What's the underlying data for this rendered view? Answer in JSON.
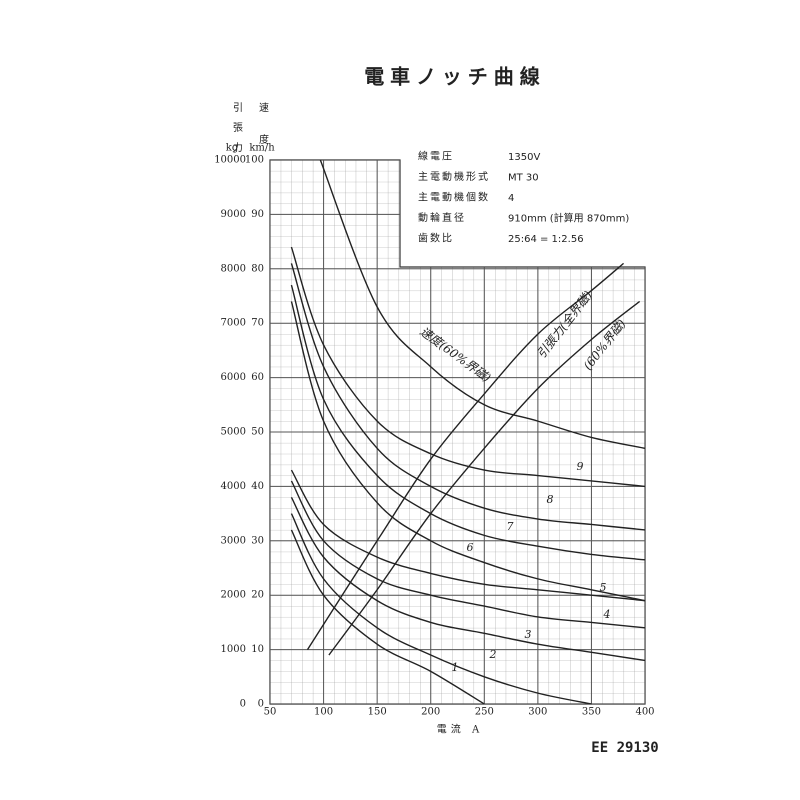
{
  "chart_data": {
    "type": "line",
    "title": "電車ノッチ曲線",
    "specs": [
      {
        "label": "線電圧",
        "value": "1350V"
      },
      {
        "label": "主電動機形式",
        "value": "MT 30"
      },
      {
        "label": "主電動機個数",
        "value": "4"
      },
      {
        "label": "動輪直径",
        "value": "910mm (計算用 870mm)"
      },
      {
        "label": "歯数比",
        "value": "25:64 = 1:2.56"
      }
    ],
    "y_label": "引張力",
    "y2_label": "速度",
    "y_unit": "kg",
    "y2_unit": "km/h",
    "x_label": "電流 A",
    "footer": "EE 29130",
    "xlim": [
      50,
      400
    ],
    "xticks": [
      50,
      100,
      150,
      200,
      250,
      300,
      350,
      400
    ],
    "ylim": [
      0,
      10000
    ],
    "yticks": [
      0,
      1000,
      2000,
      3000,
      4000,
      5000,
      6000,
      7000,
      8000,
      9000,
      10000
    ],
    "y2lim": [
      0,
      100
    ],
    "y2ticks": [
      0,
      10,
      20,
      30,
      40,
      50,
      60,
      70,
      80,
      90,
      100
    ],
    "grid": true,
    "series": [
      {
        "name": "速度(60%界磁)",
        "color": "#222",
        "axis": "y2",
        "x": [
          97,
          150,
          200,
          250,
          300,
          350,
          400
        ],
        "values": [
          100,
          73,
          62,
          55,
          52,
          49,
          47
        ]
      },
      {
        "name": "9",
        "color": "#222",
        "axis": "y2",
        "x": [
          70,
          100,
          150,
          200,
          250,
          300,
          350,
          400
        ],
        "values": [
          84,
          66,
          52,
          46,
          43,
          42,
          41,
          40
        ]
      },
      {
        "name": "8",
        "color": "#222",
        "axis": "y2",
        "x": [
          70,
          100,
          150,
          200,
          250,
          300,
          350,
          400
        ],
        "values": [
          81,
          62,
          47,
          40,
          36,
          34,
          33,
          32
        ]
      },
      {
        "name": "7",
        "color": "#222",
        "axis": "y2",
        "x": [
          70,
          100,
          150,
          200,
          250,
          300,
          350,
          400
        ],
        "values": [
          77,
          56,
          42,
          35,
          31,
          29,
          27.5,
          26.5
        ]
      },
      {
        "name": "6",
        "color": "#222",
        "axis": "y2",
        "x": [
          70,
          100,
          150,
          200,
          250,
          300,
          350,
          400
        ],
        "values": [
          74,
          52,
          37,
          30,
          26,
          23,
          21,
          19
        ]
      },
      {
        "name": "5",
        "color": "#222",
        "axis": "y2",
        "x": [
          70,
          100,
          150,
          200,
          250,
          300,
          350,
          400
        ],
        "values": [
          43,
          33,
          27,
          24,
          22,
          21,
          20,
          19
        ]
      },
      {
        "name": "4",
        "color": "#222",
        "axis": "y2",
        "x": [
          70,
          100,
          150,
          200,
          250,
          300,
          350,
          400
        ],
        "values": [
          41,
          30,
          23,
          20,
          18,
          16,
          15,
          14
        ]
      },
      {
        "name": "3",
        "color": "#222",
        "axis": "y2",
        "x": [
          70,
          100,
          150,
          200,
          250,
          300,
          350,
          400
        ],
        "values": [
          38,
          27,
          19,
          15,
          13,
          11,
          9.5,
          8
        ]
      },
      {
        "name": "2",
        "color": "#222",
        "axis": "y2",
        "x": [
          70,
          100,
          150,
          200,
          250,
          300,
          350
        ],
        "values": [
          35,
          23,
          14,
          9,
          5,
          2,
          0
        ]
      },
      {
        "name": "1",
        "color": "#222",
        "axis": "y2",
        "x": [
          70,
          100,
          150,
          200,
          250
        ],
        "values": [
          32,
          20,
          11,
          6,
          0
        ]
      },
      {
        "name": "引張力(全界磁)",
        "color": "#222",
        "x": [
          85,
          150,
          200,
          250,
          300,
          350,
          380
        ],
        "values": [
          1000,
          3000,
          4500,
          5700,
          6800,
          7600,
          8100
        ]
      },
      {
        "name": "(60%界磁)",
        "color": "#222",
        "x": [
          105,
          150,
          200,
          250,
          300,
          350,
          395
        ],
        "values": [
          900,
          2100,
          3500,
          4700,
          5800,
          6700,
          7400
        ]
      }
    ]
  }
}
